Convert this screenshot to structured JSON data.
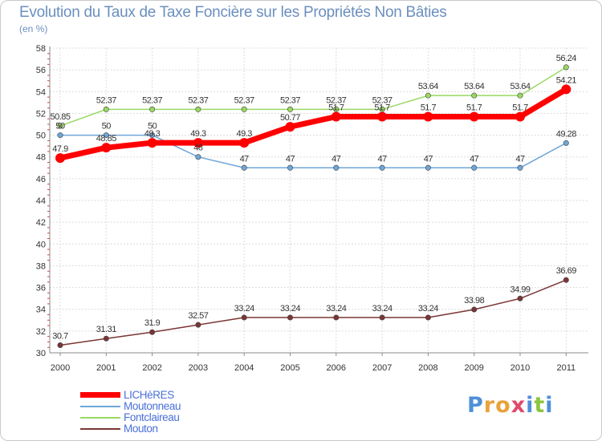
{
  "chart_data": {
    "type": "line",
    "title": "Evolution du Taux de Taxe Foncière sur les Propriétés Non Bâties",
    "subtitle": "(en %)",
    "x": [
      "2000",
      "2001",
      "2002",
      "2003",
      "2004",
      "2005",
      "2006",
      "2007",
      "2008",
      "2009",
      "2010",
      "2011"
    ],
    "ylim": [
      30,
      58
    ],
    "yticks": [
      "30",
      "32",
      "34",
      "36",
      "38",
      "40",
      "42",
      "44",
      "46",
      "48",
      "50",
      "52",
      "54",
      "56",
      "58"
    ],
    "grid": true,
    "series": [
      {
        "name": "LICHèRES",
        "color": "#ff0000",
        "emphasis": true,
        "values": [
          47.9,
          48.85,
          49.3,
          49.3,
          49.3,
          50.77,
          51.7,
          51.7,
          51.7,
          51.7,
          51.7,
          54.21
        ],
        "labels": [
          "47.9",
          "48.85",
          "49.3",
          "49.3",
          "49.3",
          "50.77",
          "51.7",
          "51.7",
          "51.7",
          "51.7",
          "51.7",
          "54.21"
        ]
      },
      {
        "name": "Moutonneau",
        "color": "#6fa6d8",
        "values": [
          50,
          50,
          50,
          48,
          47,
          47,
          47,
          47,
          47,
          47,
          47,
          49.28
        ],
        "labels": [
          "50",
          "50",
          "50",
          "48",
          "47",
          "47",
          "47",
          "47",
          "47",
          "47",
          "47",
          "49.28"
        ]
      },
      {
        "name": "Fontclaireau",
        "color": "#99d963",
        "values": [
          50.85,
          52.37,
          52.37,
          52.37,
          52.37,
          52.37,
          52.37,
          52.37,
          53.64,
          53.64,
          53.64,
          56.24
        ],
        "labels": [
          "50.85",
          "52.37",
          "52.37",
          "52.37",
          "52.37",
          "52.37",
          "52.37",
          "52.37",
          "53.64",
          "53.64",
          "53.64",
          "56.24"
        ]
      },
      {
        "name": "Mouton",
        "color": "#7a3535",
        "values": [
          30.7,
          31.31,
          31.9,
          32.57,
          33.24,
          33.24,
          33.24,
          33.24,
          33.24,
          33.98,
          34.99,
          36.69
        ],
        "labels": [
          "30.7",
          "31.31",
          "31.9",
          "32.57",
          "33.24",
          "33.24",
          "33.24",
          "33.24",
          "33.24",
          "33.98",
          "34.99",
          "36.69"
        ]
      }
    ],
    "legend_position": "bottom-left"
  },
  "branding": {
    "logo_letters": [
      "P",
      "r",
      "o",
      "x",
      "i",
      "t",
      "i"
    ],
    "logo_colors": [
      "#4f8fd8",
      "#e8a33a",
      "#e8a33a",
      "#e0486a",
      "#4f8fd8",
      "#8cc63f",
      "#4f8fd8"
    ]
  }
}
